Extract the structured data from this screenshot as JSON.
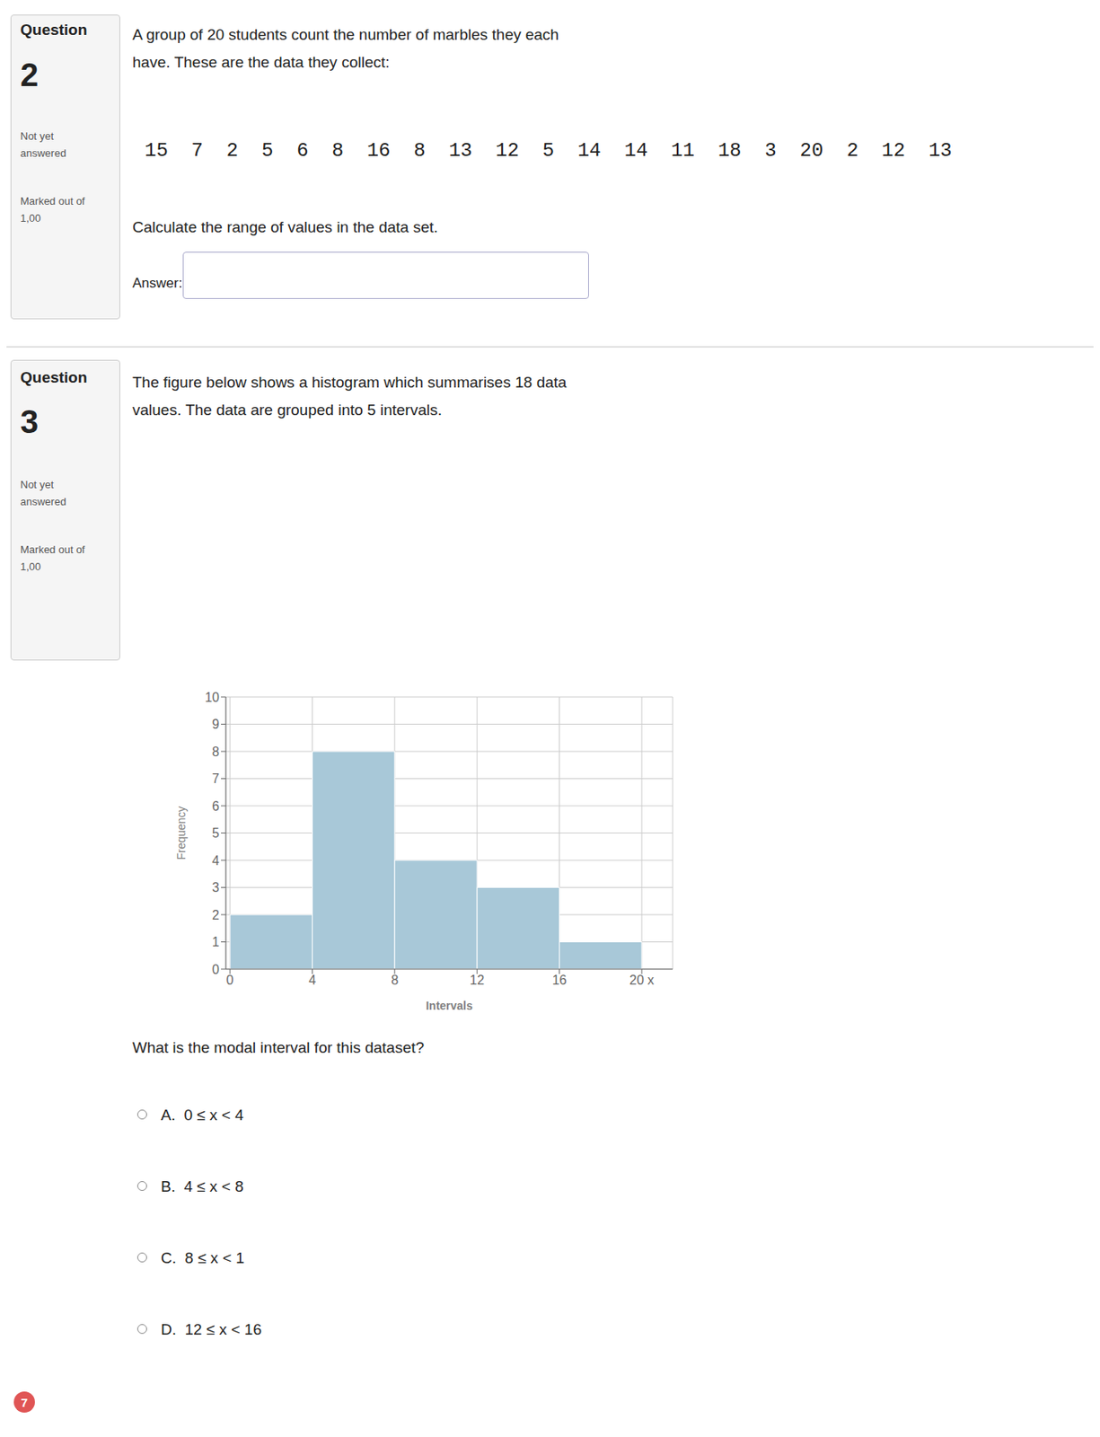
{
  "chart_data": {
    "type": "histogram",
    "bins": [
      0,
      4,
      8,
      12,
      16,
      20
    ],
    "values": [
      2,
      8,
      4,
      3,
      1
    ],
    "color": "#a8c8d8",
    "xlabel": "Intervals",
    "ylabel": "Frequency",
    "xlim": [
      -0.2,
      21.5
    ],
    "ylim": [
      0,
      10
    ],
    "xticks": [
      0,
      4,
      8,
      12,
      16,
      {
        "value": 20,
        "label": "20  x"
      }
    ],
    "yticks": [
      0,
      1,
      2,
      3,
      4,
      5,
      6,
      7,
      8,
      9,
      10
    ],
    "grid": true,
    "annotations": [
      "Question",
      "2",
      "Not yet\nanswered",
      "Marked out of\n1,00",
      "A group of 20 students count the number of marbles they each\nhave. These are the data they collect:",
      "15  7  2  5  6  8  16  8  13  12  5  14  14  11  18  3  20  2  12  13",
      "Calculate the range of values in the data set.",
      "Answer:",
      "Question",
      "3",
      "Not yet\nanswered",
      "Marked out of\n1,00",
      "The figure below shows a histogram which summarises 18 data\nvalues. The data are grouped into 5 intervals.",
      "What is the modal interval for this dataset?",
      "A.  0 ≤ x < 4",
      "B.  4 ≤ x < 8",
      "C.  8 ≤ x < 1",
      "D.  12 ≤ x < 16",
      "7"
    ]
  }
}
